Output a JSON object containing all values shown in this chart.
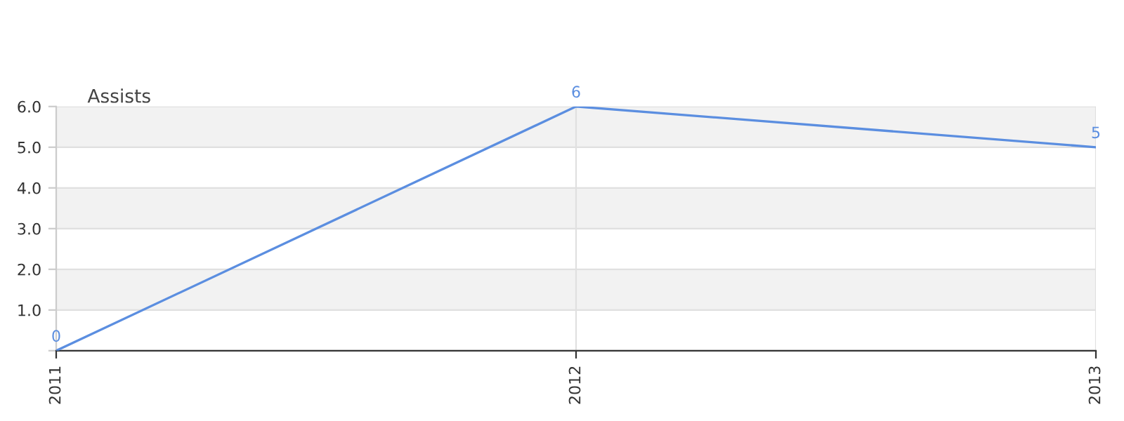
{
  "chart_data": {
    "type": "line",
    "title": "Assists",
    "categories": [
      "2011",
      "2012",
      "2013"
    ],
    "series": [
      {
        "color": "#5b8ee0",
        "values": [
          0,
          6,
          5
        ]
      }
    ],
    "ylim": [
      0,
      6
    ],
    "yticks": [
      {
        "value": 0,
        "label": null
      },
      {
        "value": 1,
        "label": "1.0"
      },
      {
        "value": 2,
        "label": "2.0"
      },
      {
        "value": 3,
        "label": "3.0"
      },
      {
        "value": 4,
        "label": "4.0"
      },
      {
        "value": 5,
        "label": "5.0"
      },
      {
        "value": 6,
        "label": "6.0"
      }
    ],
    "grid": true,
    "data_labels": true,
    "marker": "none",
    "line_style": "solid"
  }
}
